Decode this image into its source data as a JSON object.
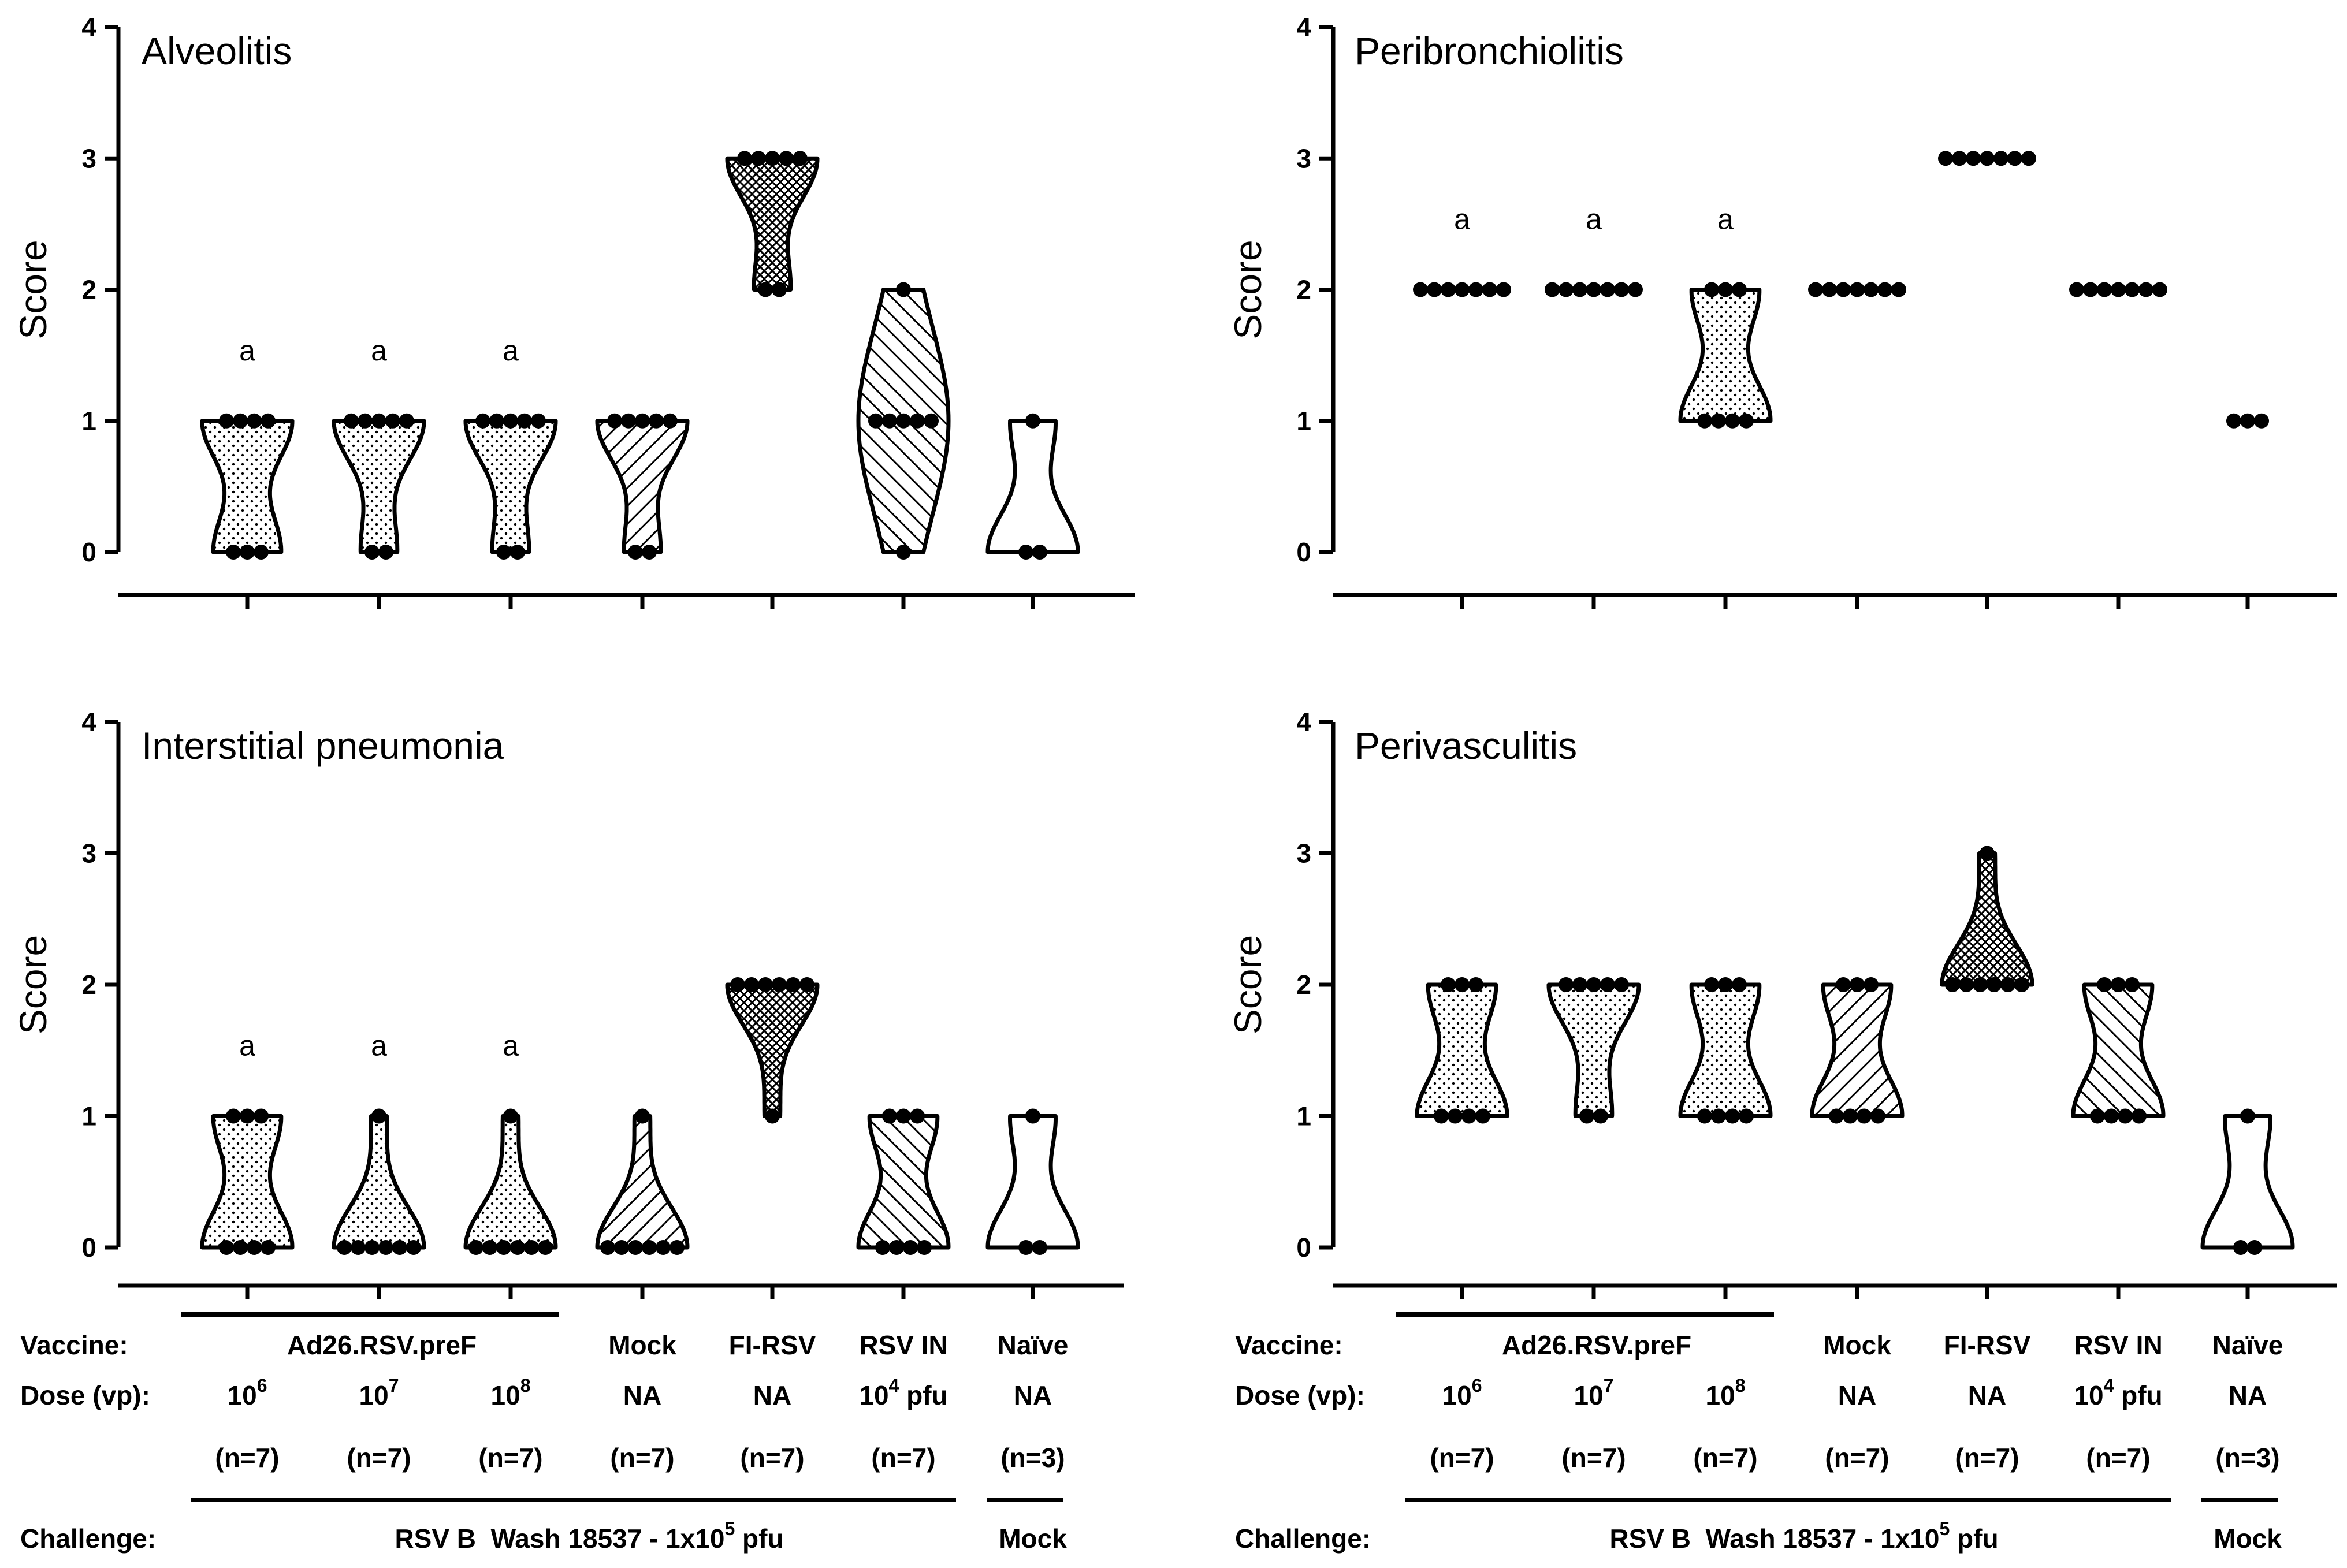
{
  "chart_data": [
    {
      "type": "violin",
      "title": "Alveolitis",
      "ylabel": "Score",
      "ylim": [
        0,
        4
      ],
      "yticks": [
        "0",
        "1",
        "2",
        "3",
        "4"
      ],
      "groups": [
        {
          "fill": "dots",
          "points": [
            1,
            1,
            1,
            1,
            0,
            0,
            0
          ],
          "label": "a"
        },
        {
          "fill": "dots",
          "points": [
            1,
            1,
            1,
            1,
            1,
            0,
            0
          ],
          "label": "a"
        },
        {
          "fill": "dots",
          "points": [
            1,
            1,
            1,
            1,
            1,
            0,
            0
          ],
          "label": "a"
        },
        {
          "fill": "hatch-fwd",
          "points": [
            1,
            1,
            1,
            1,
            1,
            0,
            0
          ],
          "label": ""
        },
        {
          "fill": "crosshatch",
          "points": [
            3,
            3,
            3,
            3,
            3,
            2,
            2
          ],
          "label": ""
        },
        {
          "fill": "hatch-back",
          "points": [
            2,
            1,
            1,
            1,
            1,
            1,
            0
          ],
          "label": ""
        },
        {
          "fill": "none",
          "points": [
            1,
            0,
            0
          ],
          "label": ""
        }
      ]
    },
    {
      "type": "violin",
      "title": "Peribronchiolitis",
      "ylabel": "Score",
      "ylim": [
        0,
        4
      ],
      "yticks": [
        "0",
        "1",
        "2",
        "3",
        "4"
      ],
      "groups": [
        {
          "fill": "dots",
          "points": [
            2,
            2,
            2,
            2,
            2,
            2,
            2
          ],
          "label": "a"
        },
        {
          "fill": "dots",
          "points": [
            2,
            2,
            2,
            2,
            2,
            2,
            2
          ],
          "label": "a"
        },
        {
          "fill": "dots",
          "points": [
            2,
            2,
            2,
            1,
            1,
            1,
            1
          ],
          "label": "a"
        },
        {
          "fill": "hatch-fwd",
          "points": [
            2,
            2,
            2,
            2,
            2,
            2,
            2
          ],
          "label": ""
        },
        {
          "fill": "crosshatch",
          "points": [
            3,
            3,
            3,
            3,
            3,
            3,
            3
          ],
          "label": ""
        },
        {
          "fill": "hatch-back",
          "points": [
            2,
            2,
            2,
            2,
            2,
            2,
            2
          ],
          "label": ""
        },
        {
          "fill": "none",
          "points": [
            1,
            1,
            1
          ],
          "label": ""
        }
      ]
    },
    {
      "type": "violin",
      "title": "Interstitial pneumonia",
      "ylabel": "Score",
      "ylim": [
        0,
        4
      ],
      "yticks": [
        "0",
        "1",
        "2",
        "3",
        "4"
      ],
      "groups": [
        {
          "fill": "dots",
          "points": [
            1,
            1,
            1,
            0,
            0,
            0,
            0
          ],
          "label": "a"
        },
        {
          "fill": "dots",
          "points": [
            1,
            0,
            0,
            0,
            0,
            0,
            0
          ],
          "label": "a"
        },
        {
          "fill": "dots",
          "points": [
            1,
            0,
            0,
            0,
            0,
            0,
            0
          ],
          "label": "a"
        },
        {
          "fill": "hatch-fwd",
          "points": [
            1,
            0,
            0,
            0,
            0,
            0,
            0
          ],
          "label": ""
        },
        {
          "fill": "crosshatch",
          "points": [
            2,
            2,
            2,
            2,
            2,
            2,
            1
          ],
          "label": ""
        },
        {
          "fill": "hatch-back",
          "points": [
            1,
            1,
            1,
            0,
            0,
            0,
            0
          ],
          "label": ""
        },
        {
          "fill": "none",
          "points": [
            1,
            0,
            0
          ],
          "label": ""
        }
      ]
    },
    {
      "type": "violin",
      "title": "Perivasculitis",
      "ylabel": "Score",
      "ylim": [
        0,
        4
      ],
      "yticks": [
        "0",
        "1",
        "2",
        "3",
        "4"
      ],
      "groups": [
        {
          "fill": "dots",
          "points": [
            2,
            2,
            2,
            1,
            1,
            1,
            1
          ],
          "label": ""
        },
        {
          "fill": "dots",
          "points": [
            2,
            2,
            2,
            2,
            2,
            1,
            1
          ],
          "label": ""
        },
        {
          "fill": "dots",
          "points": [
            2,
            2,
            2,
            1,
            1,
            1,
            1
          ],
          "label": ""
        },
        {
          "fill": "hatch-fwd",
          "points": [
            2,
            2,
            2,
            1,
            1,
            1,
            1
          ],
          "label": ""
        },
        {
          "fill": "crosshatch",
          "points": [
            3,
            2,
            2,
            2,
            2,
            2,
            2
          ],
          "label": ""
        },
        {
          "fill": "hatch-back",
          "points": [
            2,
            2,
            2,
            1,
            1,
            1,
            1
          ],
          "label": ""
        },
        {
          "fill": "none",
          "points": [
            1,
            0,
            0
          ],
          "label": ""
        }
      ]
    }
  ],
  "table": {
    "vaccine_label": "Vaccine:",
    "dose_label": "Dose (vp):",
    "challenge_label": "Challenge:",
    "vaccines": [
      "Ad26.RSV.preF",
      "Mock",
      "FI-RSV",
      "RSV IN",
      "Naïve"
    ],
    "doses": [
      {
        "base": "10",
        "sup": "6"
      },
      {
        "base": "10",
        "sup": "7"
      },
      {
        "base": "10",
        "sup": "8"
      },
      {
        "base": "NA",
        "sup": ""
      },
      {
        "base": "NA",
        "sup": ""
      },
      {
        "base": "10",
        "sup": "4",
        "suffix": " pfu"
      },
      {
        "base": "NA",
        "sup": ""
      }
    ],
    "n": [
      "(n=7)",
      "(n=7)",
      "(n=7)",
      "(n=7)",
      "(n=7)",
      "(n=7)",
      "(n=3)"
    ],
    "challenge_main": {
      "pre": "RSV B  Wash 18537 - 1x10",
      "sup": "5",
      "post": " pfu"
    },
    "challenge_mock": "Mock"
  }
}
